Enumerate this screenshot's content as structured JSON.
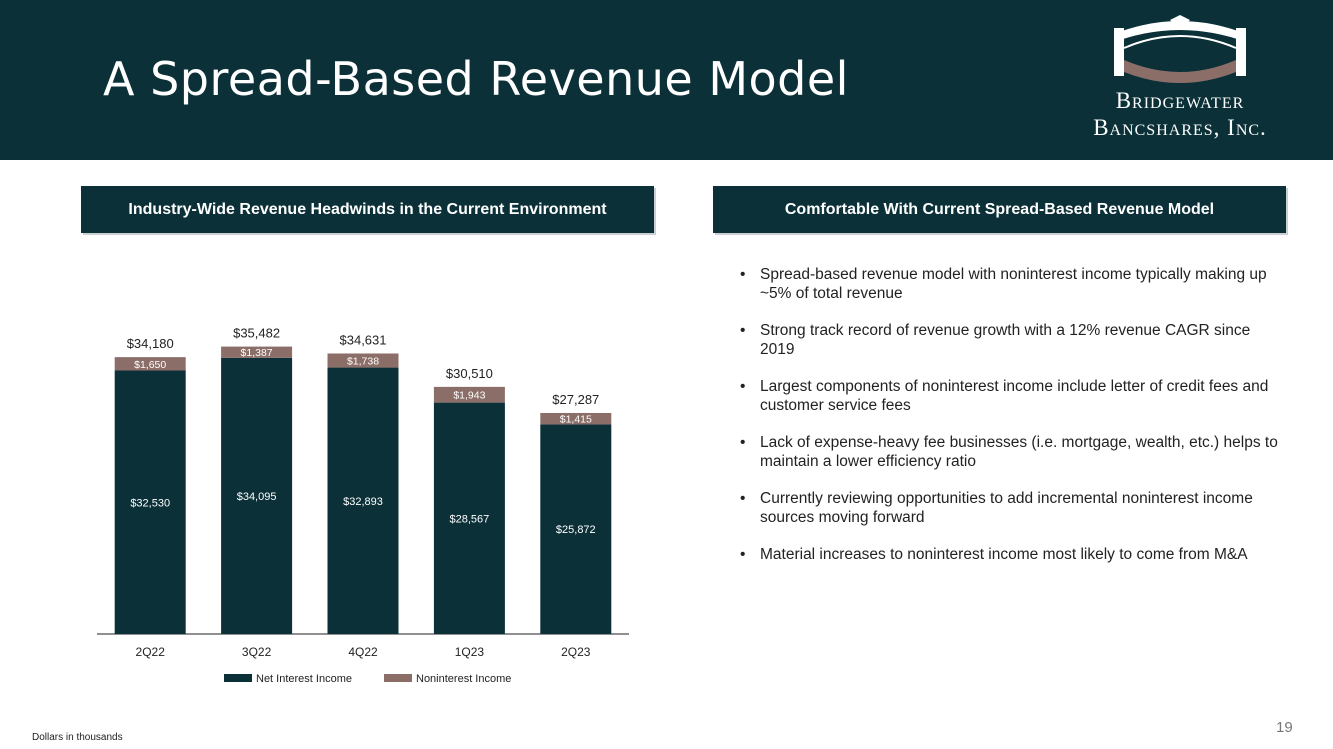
{
  "title": "A Spread-Based Revenue Model",
  "logo": {
    "line1": "Bridgewater",
    "line2": "Bancshares, Inc."
  },
  "left_header": "Industry-Wide Revenue Headwinds in the Current Environment",
  "right_header": "Comfortable With Current Spread-Based Revenue Model",
  "bullets": [
    "Spread-based revenue model with noninterest income typically making up ~5% of total revenue",
    "Strong track record of revenue growth with a 12% revenue CAGR since 2019",
    "Largest components of noninterest income include letter of credit fees and customer service fees",
    "Lack of expense-heavy fee businesses (i.e. mortgage, wealth, etc.) helps to maintain a lower efficiency ratio",
    "Currently reviewing opportunities to add incremental noninterest income sources moving forward",
    "Material increases to noninterest income most likely to come from M&A"
  ],
  "footnote": "Dollars in thousands",
  "page_number": "19",
  "colors": {
    "dark": "#0b3038",
    "accent": "#8c6e69",
    "white": "#ffffff"
  },
  "chart_data": {
    "type": "bar",
    "stacked": true,
    "categories": [
      "2Q22",
      "3Q22",
      "4Q22",
      "1Q23",
      "2Q23"
    ],
    "series": [
      {
        "name": "Net Interest Income",
        "values": [
          32530,
          34095,
          32893,
          28567,
          25872
        ],
        "labels": [
          "$32,530",
          "$34,095",
          "$32,893",
          "$28,567",
          "$25,872"
        ]
      },
      {
        "name": "Noninterest Income",
        "values": [
          1650,
          1387,
          1738,
          1943,
          1415
        ],
        "labels": [
          "$1,650",
          "$1,387",
          "$1,738",
          "$1,943",
          "$1,415"
        ]
      }
    ],
    "totals": [
      34180,
      35482,
      34631,
      30510,
      27287
    ],
    "total_labels": [
      "$34,180",
      "$35,482",
      "$34,631",
      "$30,510",
      "$27,287"
    ],
    "ylim": [
      0,
      40000
    ],
    "legend": "bottom-center"
  }
}
